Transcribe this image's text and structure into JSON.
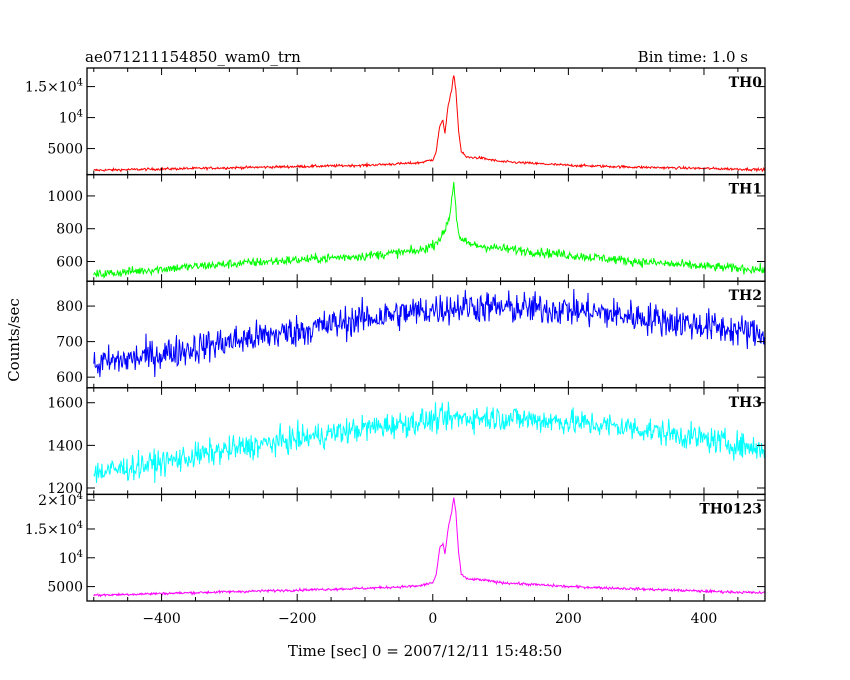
{
  "header": {
    "title": "ae071211154850_wam0_trn",
    "bin_time": "Bin time: 1.0 s"
  },
  "axes": {
    "ylabel": "Counts/sec",
    "xlabel": "Time [sec] 0 = 2007/12/11 15:48:50"
  },
  "chart_data": {
    "type": "line",
    "x_range": [
      -510,
      490
    ],
    "x_ticks": [
      -400,
      -200,
      0,
      200,
      400
    ],
    "x_tick_labels": [
      "−400",
      "−200",
      "0",
      "200",
      "400"
    ],
    "bin_time_s": 1.0,
    "panels": [
      {
        "name": "TH0",
        "color": "#ff0000",
        "ylim": [
          800,
          18000
        ],
        "y_ticks": [
          5000,
          10000,
          15000
        ],
        "y_tick_labels": [
          {
            "base": "5000",
            "exp": ""
          },
          {
            "base": "10",
            "exp": "4"
          },
          {
            "base": "1.5×10",
            "exp": "4"
          }
        ],
        "noise": 200,
        "points": [
          [
            -500,
            1500
          ],
          [
            -400,
            1700
          ],
          [
            -300,
            1900
          ],
          [
            -200,
            2100
          ],
          [
            -100,
            2300
          ],
          [
            -20,
            2700
          ],
          [
            0,
            3200
          ],
          [
            5,
            4500
          ],
          [
            10,
            8500
          ],
          [
            15,
            9500
          ],
          [
            18,
            7500
          ],
          [
            22,
            11500
          ],
          [
            25,
            13000
          ],
          [
            28,
            14500
          ],
          [
            31,
            17000
          ],
          [
            34,
            14500
          ],
          [
            38,
            8000
          ],
          [
            42,
            4500
          ],
          [
            50,
            3600
          ],
          [
            70,
            3500
          ],
          [
            100,
            2900
          ],
          [
            200,
            2300
          ],
          [
            300,
            2000
          ],
          [
            400,
            1800
          ],
          [
            490,
            1600
          ]
        ]
      },
      {
        "name": "TH1",
        "color": "#00ff00",
        "ylim": [
          480,
          1130
        ],
        "y_ticks": [
          600,
          800,
          1000
        ],
        "y_tick_labels": [
          {
            "base": "600",
            "exp": ""
          },
          {
            "base": "800",
            "exp": ""
          },
          {
            "base": "1000",
            "exp": ""
          }
        ],
        "noise": 28,
        "points": [
          [
            -500,
            520
          ],
          [
            -400,
            555
          ],
          [
            -300,
            585
          ],
          [
            -200,
            610
          ],
          [
            -100,
            635
          ],
          [
            -20,
            665
          ],
          [
            0,
            700
          ],
          [
            15,
            760
          ],
          [
            25,
            880
          ],
          [
            31,
            1090
          ],
          [
            35,
            870
          ],
          [
            40,
            730
          ],
          [
            60,
            700
          ],
          [
            100,
            680
          ],
          [
            200,
            640
          ],
          [
            300,
            600
          ],
          [
            400,
            570
          ],
          [
            490,
            550
          ]
        ]
      },
      {
        "name": "TH2",
        "color": "#0000ff",
        "ylim": [
          570,
          870
        ],
        "y_ticks": [
          600,
          700,
          800
        ],
        "y_tick_labels": [
          {
            "base": "600",
            "exp": ""
          },
          {
            "base": "700",
            "exp": ""
          },
          {
            "base": "800",
            "exp": ""
          }
        ],
        "noise": 45,
        "points": [
          [
            -500,
            635
          ],
          [
            -400,
            665
          ],
          [
            -300,
            700
          ],
          [
            -200,
            730
          ],
          [
            -100,
            765
          ],
          [
            0,
            790
          ],
          [
            50,
            800
          ],
          [
            100,
            795
          ],
          [
            200,
            790
          ],
          [
            300,
            770
          ],
          [
            400,
            745
          ],
          [
            490,
            720
          ]
        ]
      },
      {
        "name": "TH3",
        "color": "#00ffff",
        "ylim": [
          1170,
          1670
        ],
        "y_ticks": [
          1200,
          1400,
          1600
        ],
        "y_tick_labels": [
          {
            "base": "1200",
            "exp": ""
          },
          {
            "base": "1400",
            "exp": ""
          },
          {
            "base": "1600",
            "exp": ""
          }
        ],
        "noise": 60,
        "points": [
          [
            -500,
            1270
          ],
          [
            -400,
            1320
          ],
          [
            -300,
            1380
          ],
          [
            -200,
            1430
          ],
          [
            -100,
            1480
          ],
          [
            0,
            1520
          ],
          [
            50,
            1530
          ],
          [
            100,
            1530
          ],
          [
            200,
            1510
          ],
          [
            300,
            1480
          ],
          [
            400,
            1430
          ],
          [
            490,
            1380
          ]
        ]
      },
      {
        "name": "TH0123",
        "color": "#ff00ff",
        "ylim": [
          2500,
          21000
        ],
        "y_ticks": [
          5000,
          10000,
          15000,
          20000
        ],
        "y_tick_labels": [
          {
            "base": "5000",
            "exp": ""
          },
          {
            "base": "10",
            "exp": "4"
          },
          {
            "base": "1.5×10",
            "exp": "4"
          },
          {
            "base": "2×10",
            "exp": "4"
          }
        ],
        "noise": 220,
        "points": [
          [
            -500,
            3500
          ],
          [
            -400,
            3800
          ],
          [
            -300,
            4100
          ],
          [
            -200,
            4400
          ],
          [
            -100,
            4700
          ],
          [
            -20,
            5100
          ],
          [
            0,
            5700
          ],
          [
            5,
            7000
          ],
          [
            10,
            11500
          ],
          [
            15,
            12500
          ],
          [
            18,
            10500
          ],
          [
            22,
            14500
          ],
          [
            25,
            16500
          ],
          [
            28,
            18000
          ],
          [
            31,
            20500
          ],
          [
            34,
            18000
          ],
          [
            38,
            11000
          ],
          [
            42,
            7200
          ],
          [
            50,
            6300
          ],
          [
            70,
            6200
          ],
          [
            100,
            5700
          ],
          [
            200,
            5000
          ],
          [
            300,
            4600
          ],
          [
            400,
            4200
          ],
          [
            490,
            3900
          ]
        ]
      }
    ]
  }
}
